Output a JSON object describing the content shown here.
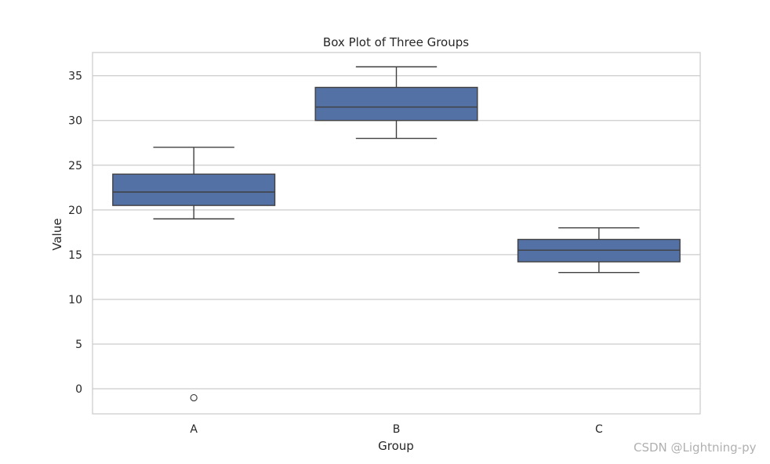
{
  "chart_data": {
    "type": "box",
    "title": "Box Plot of Three Groups",
    "xlabel": "Group",
    "ylabel": "Value",
    "categories": [
      "A",
      "B",
      "C"
    ],
    "ylim": [
      -2.8,
      37.6
    ],
    "yticks": [
      0,
      5,
      10,
      15,
      20,
      25,
      30,
      35
    ],
    "grid": true,
    "box_color": "#5471a5",
    "line_color": "#404040",
    "boxes": [
      {
        "category": "A",
        "whisker_low": 19,
        "q1": 20.5,
        "median": 22,
        "q3": 24,
        "whisker_high": 27,
        "outliers": [
          -1
        ]
      },
      {
        "category": "B",
        "whisker_low": 28,
        "q1": 30,
        "median": 31.5,
        "q3": 33.7,
        "whisker_high": 36,
        "outliers": []
      },
      {
        "category": "C",
        "whisker_low": 13,
        "q1": 14.2,
        "median": 15.5,
        "q3": 16.7,
        "whisker_high": 18,
        "outliers": []
      }
    ]
  },
  "watermark": "CSDN @Lightning-py"
}
